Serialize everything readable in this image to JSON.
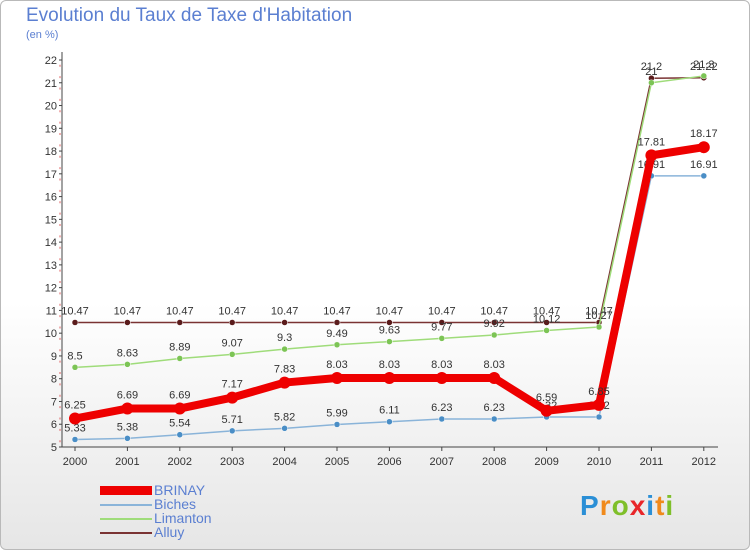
{
  "title": "Evolution du Taux de Taxe d'Habitation",
  "unit_label": "(en %)",
  "logo_text": "Proxiti",
  "chart_data": {
    "type": "line",
    "title": "Evolution du Taux de Taxe d'Habitation",
    "ylabel": "(en %)",
    "xlabel": "",
    "ylim": [
      5,
      22
    ],
    "yticks": [
      5,
      6,
      7,
      8,
      9,
      10,
      11,
      12,
      13,
      14,
      15,
      16,
      17,
      18,
      19,
      20,
      21,
      22
    ],
    "categories": [
      "2000",
      "2001",
      "2002",
      "2003",
      "2004",
      "2005",
      "2006",
      "2007",
      "2008",
      "2009",
      "2010",
      "2011",
      "2012"
    ],
    "grid": false,
    "series": [
      {
        "name": "Alluy",
        "color": "#7a3333",
        "marker": "#5a1b1b",
        "values": [
          10.47,
          10.47,
          10.47,
          10.47,
          10.47,
          10.47,
          10.47,
          10.47,
          10.47,
          10.47,
          10.47,
          21.2,
          21.22
        ],
        "labels": [
          "10.47",
          "10.47",
          "10.47",
          "10.47",
          "10.47",
          "10.47",
          "10.47",
          "10.47",
          "10.47",
          "10.47",
          "10.47",
          "21.2",
          "21.22"
        ]
      },
      {
        "name": "Limanton",
        "color": "#9fdc7a",
        "marker": "#7cc455",
        "values": [
          8.5,
          8.63,
          8.89,
          9.07,
          9.3,
          9.49,
          9.63,
          9.77,
          9.92,
          10.12,
          10.27,
          21.0,
          21.3
        ],
        "labels": [
          "8.5",
          "8.63",
          "8.89",
          "9.07",
          "9.3",
          "9.49",
          "9.63",
          "9.77",
          "9.92",
          "10.12",
          "10.27",
          "21",
          "21.3"
        ]
      },
      {
        "name": "Biches",
        "color": "#8ab4d9",
        "marker": "#4a8ec6",
        "values": [
          5.33,
          5.38,
          5.54,
          5.71,
          5.82,
          5.99,
          6.11,
          6.23,
          6.23,
          6.32,
          6.32,
          16.91,
          16.91
        ],
        "labels": [
          "5.33",
          "5.38",
          "5.54",
          "5.71",
          "5.82",
          "5.99",
          "6.11",
          "6.23",
          "6.23",
          "6.32",
          "6.32",
          "16.91",
          "16.91"
        ]
      },
      {
        "name": "BRINAY",
        "color": "#ee0000",
        "marker": "#ee0000",
        "values": [
          6.25,
          6.69,
          6.69,
          7.17,
          7.83,
          8.03,
          8.03,
          8.03,
          8.03,
          6.59,
          6.85,
          17.81,
          18.17
        ],
        "labels": [
          "6.25",
          "6.69",
          "6.69",
          "7.17",
          "7.83",
          "8.03",
          "8.03",
          "8.03",
          "8.03",
          "6.59",
          "6.85",
          "17.81",
          "18.17"
        ]
      }
    ]
  },
  "legend": [
    {
      "name": "BRINAY",
      "color": "#ee0000"
    },
    {
      "name": "Biches",
      "color": "#8ab4d9"
    },
    {
      "name": "Limanton",
      "color": "#9fdc7a"
    },
    {
      "name": "Alluy",
      "color": "#7a3333"
    }
  ]
}
